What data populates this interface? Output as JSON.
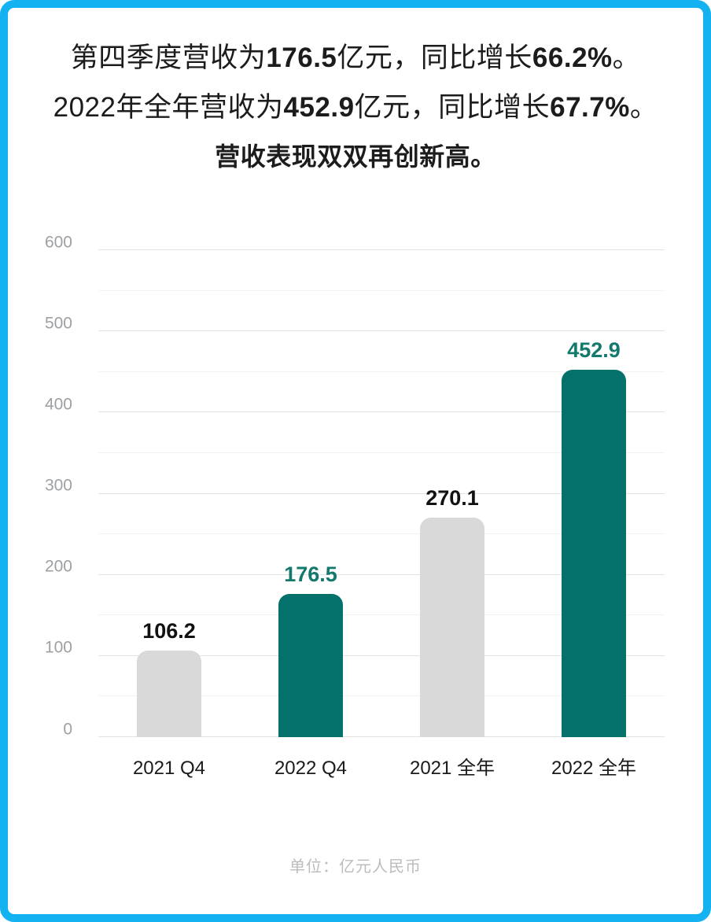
{
  "page": {
    "border_color": "#15b2f1",
    "background": "#ffffff"
  },
  "header": {
    "line1": {
      "pre": "第四季度营收为",
      "value": "176.5",
      "mid": "亿元，同比增长",
      "growth": "66.2%",
      "suffix": "。"
    },
    "line2": {
      "pre": "2022年全年营收为",
      "value": "452.9",
      "mid": "亿元，同比增长",
      "growth": "67.7%",
      "suffix": "。"
    },
    "line3": "营收表现双双再创新高。"
  },
  "chart_data": {
    "type": "bar",
    "title": "",
    "xlabel": "",
    "ylabel": "",
    "categories": [
      "2021 Q4",
      "2022 Q4",
      "2021 全年",
      "2022 全年"
    ],
    "values": [
      106.2,
      176.5,
      270.1,
      452.9
    ],
    "value_labels": [
      "106.2",
      "176.5",
      "270.1",
      "452.9"
    ],
    "bar_colors": [
      "#d9d9d9",
      "#04726a",
      "#d9d9d9",
      "#04726a"
    ],
    "value_label_colors": [
      "#111111",
      "#13796d",
      "#111111",
      "#13796d"
    ],
    "ylim": [
      0,
      600
    ],
    "ytick_major_step": 100,
    "ytick_minor_step": 50,
    "ytick_labels": [
      "0",
      "100",
      "200",
      "300",
      "400",
      "500",
      "600"
    ],
    "grid": true,
    "legend_position": "none",
    "unit_note": "单位：亿元人民币"
  },
  "footer": {
    "unit_note": "单位：亿元人民币"
  }
}
